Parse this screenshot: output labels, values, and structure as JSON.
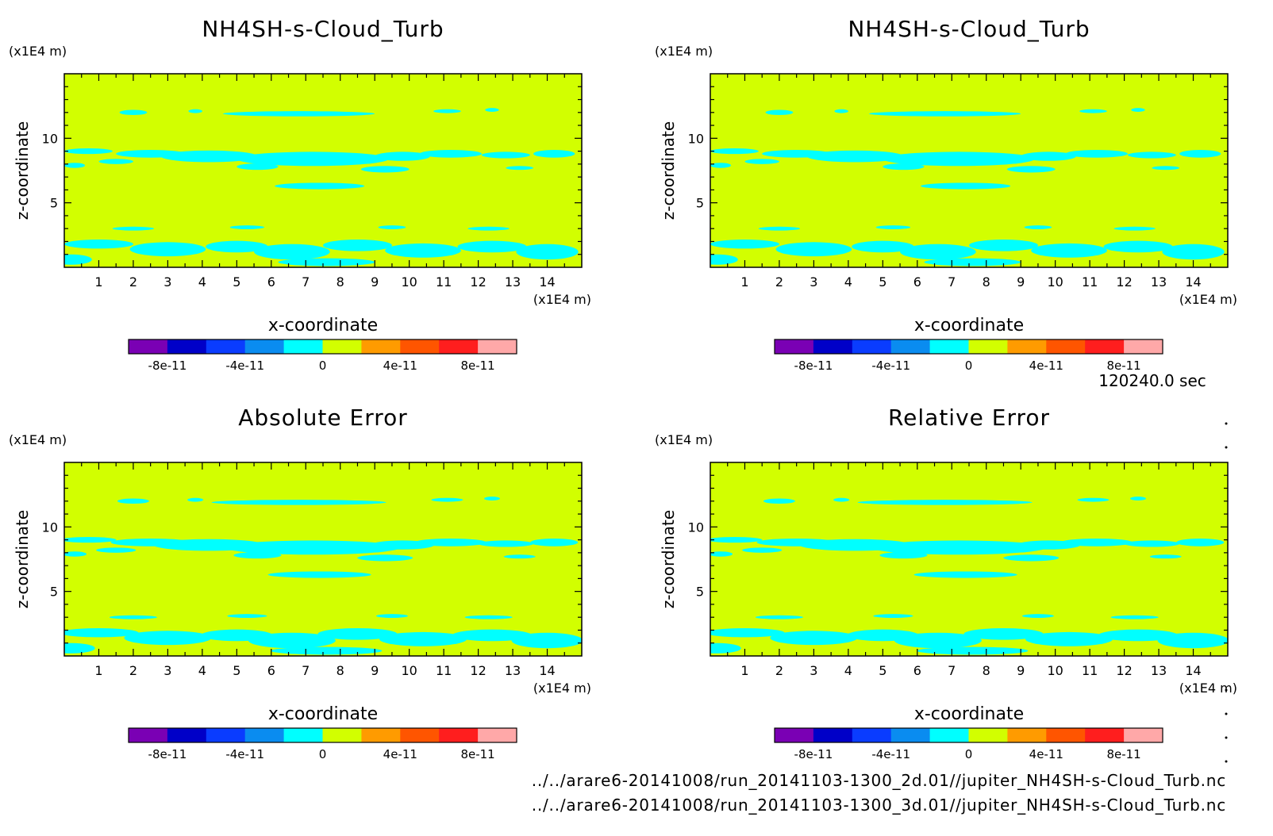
{
  "chart_data": [
    {
      "type": "heatmap",
      "title": "NH4SH-s-Cloud_Turb",
      "xlabel": "x-coordinate",
      "ylabel": "z-coordinate",
      "x_unit": "(x1E4 m)",
      "y_unit": "(x1E4 m)",
      "xlim": [
        0,
        15
      ],
      "ylim": [
        0,
        15
      ],
      "x_ticks": [
        "1",
        "2",
        "3",
        "4",
        "5",
        "6",
        "7",
        "8",
        "9",
        "10",
        "11",
        "12",
        "13",
        "14"
      ],
      "y_ticks": [
        "5",
        "10"
      ],
      "colorbar_labels": [
        "-8e-11",
        "-4e-11",
        "0",
        "4e-11",
        "8e-11"
      ]
    },
    {
      "type": "heatmap",
      "title": "NH4SH-s-Cloud_Turb",
      "xlabel": "x-coordinate",
      "ylabel": "z-coordinate",
      "x_unit": "(x1E4 m)",
      "y_unit": "(x1E4 m)",
      "xlim": [
        0,
        15
      ],
      "ylim": [
        0,
        15
      ],
      "x_ticks": [
        "1",
        "2",
        "3",
        "4",
        "5",
        "6",
        "7",
        "8",
        "9",
        "10",
        "11",
        "12",
        "13",
        "14"
      ],
      "y_ticks": [
        "5",
        "10"
      ],
      "colorbar_labels": [
        "-8e-11",
        "-4e-11",
        "0",
        "4e-11",
        "8e-11"
      ]
    },
    {
      "type": "heatmap",
      "title": "Absolute Error",
      "xlabel": "x-coordinate",
      "ylabel": "z-coordinate",
      "x_unit": "(x1E4 m)",
      "y_unit": "(x1E4 m)",
      "xlim": [
        0,
        15
      ],
      "ylim": [
        0,
        15
      ],
      "x_ticks": [
        "1",
        "2",
        "3",
        "4",
        "5",
        "6",
        "7",
        "8",
        "9",
        "10",
        "11",
        "12",
        "13",
        "14"
      ],
      "y_ticks": [
        "5",
        "10"
      ],
      "colorbar_labels": [
        "-8e-11",
        "-4e-11",
        "0",
        "4e-11",
        "8e-11"
      ]
    },
    {
      "type": "heatmap",
      "title": "Relative Error",
      "xlabel": "x-coordinate",
      "ylabel": "z-coordinate",
      "x_unit": "(x1E4 m)",
      "y_unit": "(x1E4 m)",
      "xlim": [
        0,
        15
      ],
      "ylim": [
        0,
        15
      ],
      "x_ticks": [
        "1",
        "2",
        "3",
        "4",
        "5",
        "6",
        "7",
        "8",
        "9",
        "10",
        "11",
        "12",
        "13",
        "14"
      ],
      "y_ticks": [
        "5",
        "10"
      ],
      "colorbar_labels": [
        "-8e-11",
        "-4e-11",
        "0",
        "4e-11",
        "8e-11"
      ]
    }
  ],
  "colorbar_colors": [
    "#7a00b4",
    "#0000c8",
    "#0a3cff",
    "#0a8cf0",
    "#00ffff",
    "#d2ff00",
    "#ff9b00",
    "#ff5500",
    "#ff1e1e",
    "#ffa8a8"
  ],
  "field_color": "#d2ff00",
  "contour_color": "#00ffff",
  "time_label": "120240.0 sec",
  "file_paths": [
    "../../arare6-20141008/run_20141103-1300_2d.01//jupiter_NH4SH-s-Cloud_Turb.nc",
    "../../arare6-20141008/run_20141103-1300_3d.01//jupiter_NH4SH-s-Cloud_Turb.nc"
  ]
}
